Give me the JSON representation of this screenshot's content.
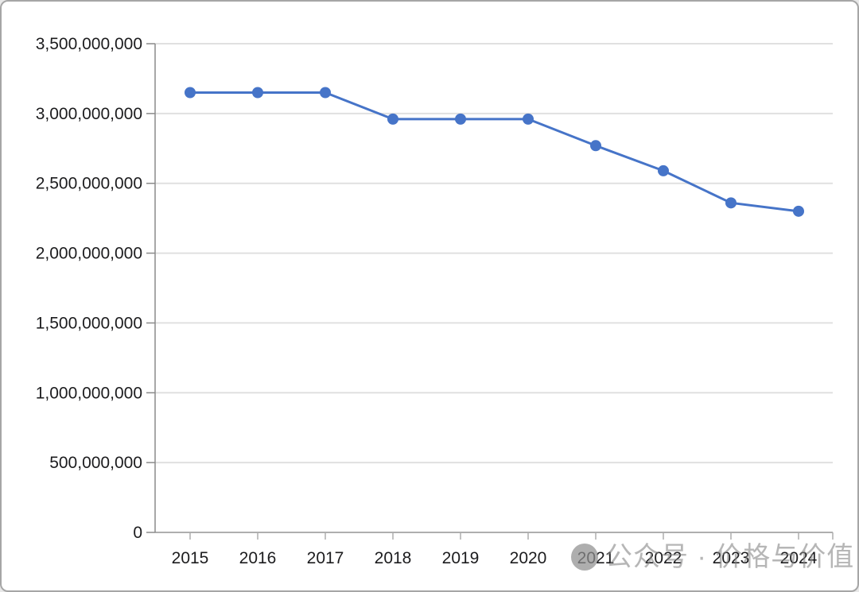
{
  "window": {
    "background": "#ffffff",
    "border_color": "#a6a6a6"
  },
  "chart_data": {
    "type": "line",
    "title": "",
    "xlabel": "",
    "ylabel": "",
    "categories": [
      "2015",
      "2016",
      "2017",
      "2018",
      "2019",
      "2020",
      "2021",
      "2022",
      "2023",
      "2024"
    ],
    "series": [
      {
        "name": "value",
        "color": "#4674c8",
        "marker": "circle",
        "values": [
          3150000000,
          3150000000,
          3150000000,
          2960000000,
          2960000000,
          2960000000,
          2770000000,
          2590000000,
          2360000000,
          2300000000
        ]
      }
    ],
    "ylim": [
      0,
      3500000000
    ],
    "ytick_step": 500000000,
    "ytick_labels": [
      "0",
      "500,000,000",
      "1,000,000,000",
      "1,500,000,000",
      "2,000,000,000",
      "2,500,000,000",
      "3,000,000,000",
      "3,500,000,000"
    ],
    "grid": true,
    "legend_position": "none",
    "colors": {
      "axis": "#8a8a8a",
      "gridline": "#e0e0e0",
      "baseline": "#aeaeae",
      "x_tick": "#aeaeae",
      "tick_label": "#1c1c1e"
    }
  },
  "watermark": {
    "logo_icon": "gray-circle-logo",
    "text": "公众号 · 价格与价值",
    "color": "#8f8f8f"
  }
}
